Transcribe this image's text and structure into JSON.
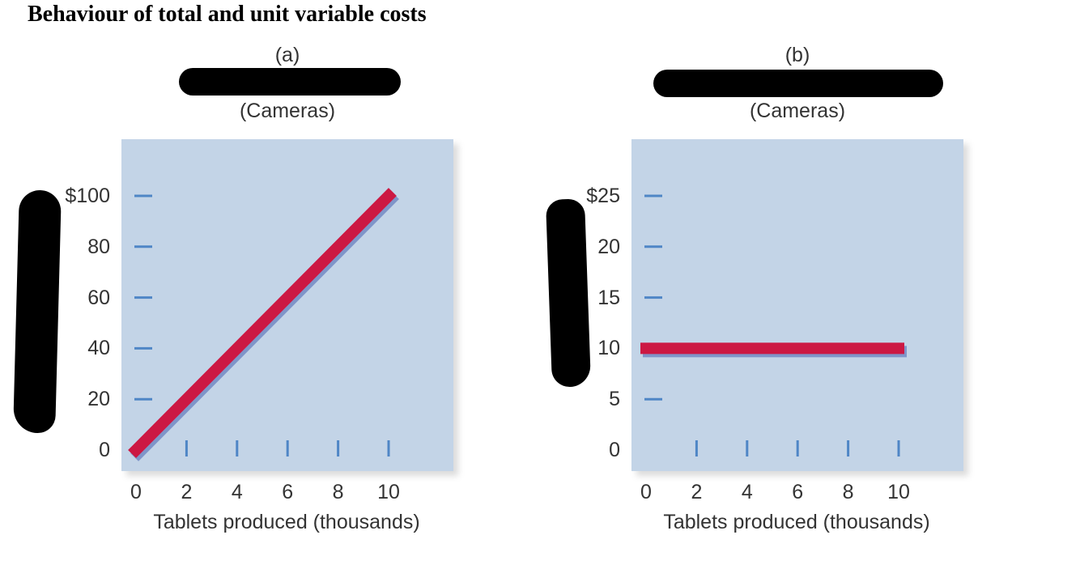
{
  "title": "Behaviour of total and unit variable costs",
  "chart_data": [
    {
      "type": "line",
      "panel_label": "(a)",
      "subtitle": "(Cameras)",
      "xlabel": "Tablets produced (thousands)",
      "ylabel": "",
      "x_ticks": [
        0,
        2,
        4,
        6,
        8,
        10
      ],
      "y_ticks": [
        0,
        20,
        40,
        60,
        80,
        100
      ],
      "y_tick_labels": [
        "0",
        "20",
        "40",
        "60",
        "80",
        "$100"
      ],
      "xlim": [
        0,
        10
      ],
      "ylim": [
        0,
        100
      ],
      "grid": false,
      "series": [
        {
          "name": "",
          "x": [
            0,
            10
          ],
          "y": [
            0,
            100
          ],
          "color": "#cc1843"
        }
      ]
    },
    {
      "type": "line",
      "panel_label": "(b)",
      "subtitle": "(Cameras)",
      "xlabel": "Tablets produced (thousands)",
      "ylabel": "",
      "x_ticks": [
        0,
        2,
        4,
        6,
        8,
        10
      ],
      "y_ticks": [
        0,
        5,
        10,
        15,
        20,
        25
      ],
      "y_tick_labels": [
        "0",
        "5",
        "10",
        "15",
        "20",
        "$25"
      ],
      "xlim": [
        0,
        10
      ],
      "ylim": [
        0,
        25
      ],
      "grid": false,
      "series": [
        {
          "name": "",
          "x": [
            0,
            10
          ],
          "y": [
            10,
            10
          ],
          "color": "#cc1843"
        }
      ]
    }
  ],
  "colors": {
    "plot_background": "#c3d4e7",
    "tick_marks": "#4f86c6",
    "line": "#cc1843",
    "line_shadow": "#7f95c9"
  }
}
